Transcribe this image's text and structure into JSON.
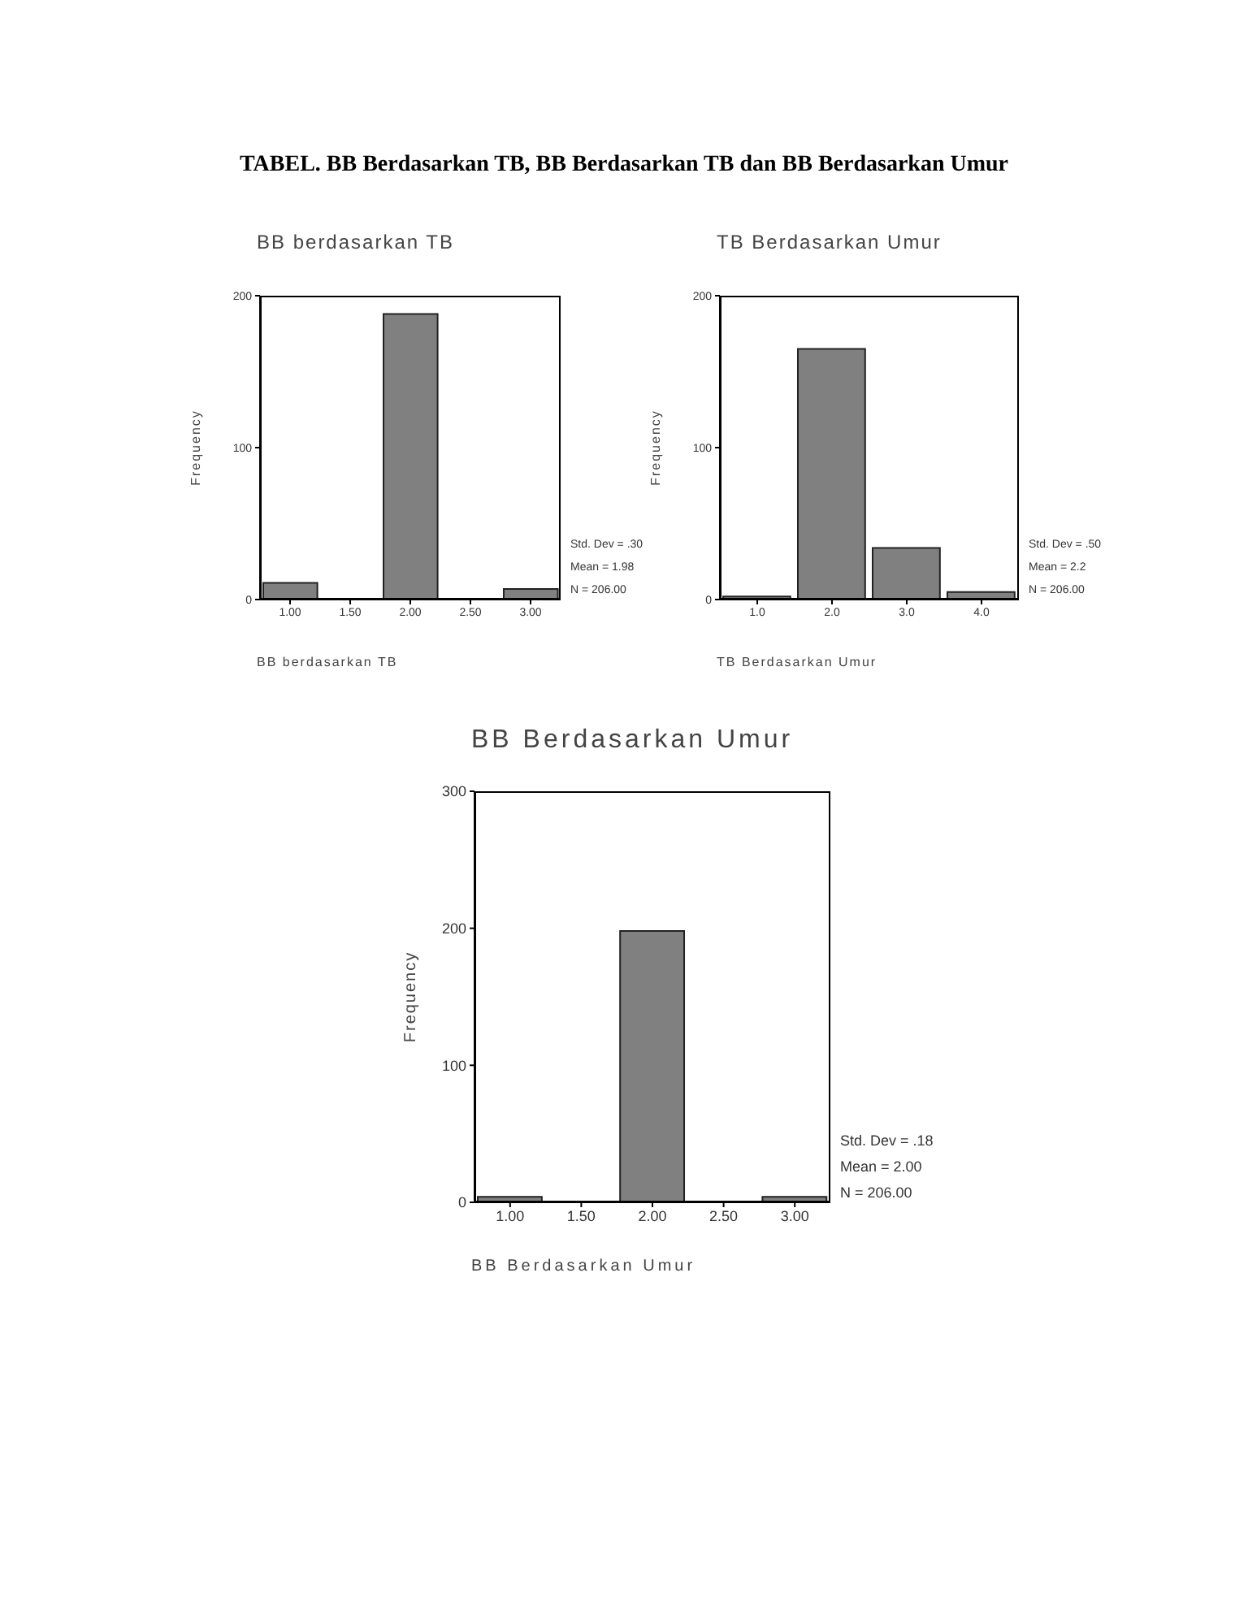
{
  "chart_data": [
    {
      "type": "histogram",
      "title": "BB berdasarkan TB",
      "xlabel": "BB berdasarkan TB",
      "ylabel": "Frequency",
      "bins": [
        0.75,
        1.25,
        1.75,
        2.25,
        2.75,
        3.25
      ],
      "values": [
        11,
        0,
        188,
        0,
        7
      ],
      "color": "#808080",
      "xlim": [
        0.75,
        3.25
      ],
      "xticks": [
        {
          "value": 1,
          "label": "1.00"
        },
        {
          "value": 1.5,
          "label": "1.50"
        },
        {
          "value": 2,
          "label": "2.00"
        },
        {
          "value": 2.5,
          "label": "2.50"
        },
        {
          "value": 3,
          "label": "3.00"
        }
      ],
      "ylim": [
        0,
        200
      ],
      "yticks": [
        0,
        100,
        200
      ],
      "grid": false,
      "annotations": [
        "TABEL. BB Berdasarkan TB, BB Berdasarkan TB dan BB Berdasarkan Umur",
        "Std. Dev = .30",
        "Mean = 1.98",
        "N = 206.00"
      ]
    },
    {
      "type": "histogram",
      "title": "TB Berdasarkan Umur",
      "xlabel": "TB Berdasarkan Umur",
      "ylabel": "Frequency",
      "bins": [
        0.5,
        1.5,
        2.5,
        3.5,
        4.5
      ],
      "values": [
        2,
        165,
        34,
        5
      ],
      "color": "#808080",
      "xlim": [
        0.5,
        4.5
      ],
      "xticks": [
        {
          "value": 1,
          "label": "1.0"
        },
        {
          "value": 2,
          "label": "2.0"
        },
        {
          "value": 3,
          "label": "3.0"
        },
        {
          "value": 4,
          "label": "4.0"
        }
      ],
      "ylim": [
        0,
        200
      ],
      "yticks": [
        0,
        100,
        200
      ],
      "grid": false,
      "annotations": [
        "Std. Dev = .50",
        "Mean = 2.2",
        "N = 206.00"
      ]
    },
    {
      "type": "histogram",
      "title": "BB Berdasarkan Umur",
      "xlabel": "BB Berdasarkan Umur",
      "ylabel": "Frequency",
      "bins": [
        0.75,
        1.25,
        1.75,
        2.25,
        2.75,
        3.25
      ],
      "values": [
        4,
        0,
        198,
        0,
        4
      ],
      "color": "#808080",
      "xlim": [
        0.75,
        3.25
      ],
      "xticks": [
        {
          "value": 1,
          "label": "1.00"
        },
        {
          "value": 1.5,
          "label": "1.50"
        },
        {
          "value": 2,
          "label": "2.00"
        },
        {
          "value": 2.5,
          "label": "2.50"
        },
        {
          "value": 3,
          "label": "3.00"
        }
      ],
      "ylim": [
        0,
        300
      ],
      "yticks": [
        0,
        100,
        200,
        300
      ],
      "grid": false,
      "annotations": [
        "Std. Dev = .18",
        "Mean = 2.00",
        "N = 206.00"
      ]
    }
  ]
}
